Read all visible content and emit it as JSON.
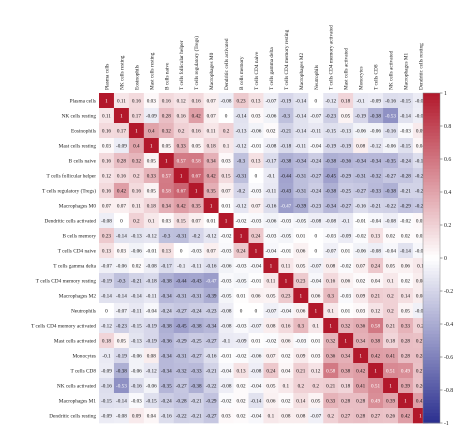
{
  "chart_data": {
    "type": "heatmap",
    "title": "",
    "labels": [
      "Plasma cells",
      "NK cells resting",
      "Eosinophils",
      "Mast cells resting",
      "B cells naive",
      "T cells follicular helper",
      "T cells regulatory (Tregs)",
      "Macrophages M0",
      "Dendritic cells activated",
      "B cells memory",
      "T cells CD4 naive",
      "T cells gamma delta",
      "T cells CD4 memory resting",
      "Macrophages M2",
      "Neutrophils",
      "T cells CD4 memory activated",
      "Mast cells activated",
      "Monocytes",
      "T cells CD8",
      "NK cells activated",
      "Macrophages M1",
      "Dendritic cells resting"
    ],
    "matrix": [
      [
        "1",
        "0.11",
        "0.16",
        "0.03",
        "0.16",
        "0.12",
        "0.16",
        "0.07",
        "-0.08",
        "0.23",
        "0.13",
        "-0.07",
        "-0.19",
        "-0.14",
        "0",
        "-0.12",
        "0.18",
        "-0.1",
        "-0.09",
        "-0.16",
        "-0.15",
        "-0.09"
      ],
      [
        "0.11",
        "1",
        "0.17",
        "-0.09",
        "0.28",
        "0.16",
        "0.42",
        "0.07",
        "0",
        "-0.14",
        "0.03",
        "-0.06",
        "-0.3",
        "-0.14",
        "-0.07",
        "-0.23",
        "0.05",
        "-0.19",
        "-0.38",
        "-0.53",
        "-0.14",
        "-0.08"
      ],
      [
        "0.16",
        "0.17",
        "1",
        "0.4",
        "0.32",
        "0.2",
        "0.16",
        "0.11",
        "0.2",
        "-0.13",
        "-0.06",
        "0.02",
        "-0.21",
        "-0.14",
        "-0.11",
        "-0.15",
        "-0.13",
        "-0.06",
        "-0.06",
        "-0.16",
        "-0.03",
        "0.09"
      ],
      [
        "0.03",
        "-0.09",
        "0.4",
        "1",
        "0.05",
        "0.33",
        "0.05",
        "0.18",
        "0.1",
        "-0.12",
        "-0.01",
        "-0.08",
        "-0.18",
        "-0.11",
        "-0.04",
        "-0.19",
        "-0.19",
        "0.08",
        "-0.12",
        "-0.06",
        "-0.15",
        "0.04"
      ],
      [
        "0.16",
        "0.28",
        "0.32",
        "0.05",
        "1",
        "0.57",
        "0.58",
        "0.34",
        "0.03",
        "-0.3",
        "0.13",
        "-0.17",
        "-0.38",
        "-0.34",
        "-0.24",
        "-0.38",
        "-0.36",
        "-0.34",
        "-0.34",
        "-0.35",
        "-0.24",
        "-0.16"
      ],
      [
        "0.12",
        "0.16",
        "0.2",
        "0.33",
        "0.57",
        "1",
        "0.67",
        "0.42",
        "0.15",
        "-0.31",
        "0",
        "-0.1",
        "-0.44",
        "-0.31",
        "-0.27",
        "-0.45",
        "-0.29",
        "-0.31",
        "-0.32",
        "-0.27",
        "-0.28",
        "-0.22"
      ],
      [
        "0.16",
        "0.42",
        "0.16",
        "0.05",
        "0.58",
        "0.67",
        "1",
        "0.35",
        "0.07",
        "-0.2",
        "-0.03",
        "-0.11",
        "-0.43",
        "-0.31",
        "-0.24",
        "-0.38",
        "-0.25",
        "-0.27",
        "-0.33",
        "-0.38",
        "-0.21",
        "-0.21"
      ],
      [
        "0.07",
        "0.07",
        "0.11",
        "0.18",
        "0.34",
        "0.42",
        "0.35",
        "1",
        "0.01",
        "-0.12",
        "0.07",
        "-0.16",
        "-0.47",
        "-0.39",
        "-0.23",
        "-0.34",
        "-0.27",
        "-0.16",
        "-0.21",
        "-0.22",
        "-0.29",
        "-0.27"
      ],
      [
        "-0.08",
        "0",
        "0.2",
        "0.1",
        "0.03",
        "0.15",
        "0.07",
        "0.01",
        "1",
        "-0.02",
        "-0.03",
        "-0.06",
        "-0.03",
        "-0.05",
        "-0.08",
        "-0.08",
        "-0.1",
        "-0.01",
        "-0.04",
        "-0.08",
        "-0.02",
        "0.03"
      ],
      [
        "0.23",
        "-0.14",
        "-0.13",
        "-0.12",
        "-0.3",
        "-0.31",
        "-0.2",
        "-0.12",
        "-0.02",
        "1",
        "0.24",
        "-0.03",
        "-0.05",
        "0.01",
        "0",
        "-0.03",
        "-0.09",
        "-0.02",
        "0.13",
        "0.02",
        "0.02",
        "0.02"
      ],
      [
        "0.13",
        "0.03",
        "-0.06",
        "-0.01",
        "0.13",
        "0",
        "-0.03",
        "0.07",
        "-0.03",
        "0.24",
        "1",
        "-0.04",
        "-0.01",
        "0.06",
        "0",
        "-0.07",
        "0.01",
        "-0.06",
        "-0.08",
        "-0.04",
        "-0.14",
        "-0.04"
      ],
      [
        "-0.07",
        "-0.06",
        "0.02",
        "-0.08",
        "-0.17",
        "-0.1",
        "-0.11",
        "-0.16",
        "-0.06",
        "-0.03",
        "-0.04",
        "1",
        "0.11",
        "0.05",
        "-0.07",
        "0.08",
        "-0.02",
        "0.07",
        "0.24",
        "0.05",
        "0.06",
        "0.1"
      ],
      [
        "-0.19",
        "-0.3",
        "-0.21",
        "-0.18",
        "-0.38",
        "-0.44",
        "-0.43",
        "-0.47",
        "-0.03",
        "-0.05",
        "-0.01",
        "0.11",
        "1",
        "0.23",
        "-0.04",
        "0.16",
        "0.06",
        "0.02",
        "0.04",
        "0.1",
        "0.02",
        "0.08"
      ],
      [
        "-0.14",
        "-0.14",
        "-0.14",
        "-0.11",
        "-0.34",
        "-0.31",
        "-0.31",
        "-0.39",
        "-0.05",
        "0.01",
        "0.06",
        "0.05",
        "0.23",
        "1",
        "0.06",
        "0.3",
        "-0.03",
        "0.09",
        "0.21",
        "0.2",
        "0.14",
        "0.08"
      ],
      [
        "0",
        "-0.07",
        "-0.11",
        "-0.04",
        "-0.24",
        "-0.27",
        "-0.24",
        "-0.23",
        "-0.08",
        "0",
        "0",
        "-0.07",
        "-0.04",
        "0.06",
        "1",
        "0.1",
        "0.01",
        "0.03",
        "0.12",
        "0.2",
        "0.05",
        "-0.07"
      ],
      [
        "-0.12",
        "-0.23",
        "-0.15",
        "-0.19",
        "-0.38",
        "-0.45",
        "-0.38",
        "-0.34",
        "-0.08",
        "-0.03",
        "-0.07",
        "0.08",
        "0.16",
        "0.3",
        "0.1",
        "1",
        "0.32",
        "0.36",
        "0.58",
        "0.21",
        "0.33",
        "0.2"
      ],
      [
        "0.18",
        "0.05",
        "-0.13",
        "-0.19",
        "-0.36",
        "-0.29",
        "-0.25",
        "-0.27",
        "-0.1",
        "-0.09",
        "0.01",
        "-0.02",
        "0.06",
        "-0.03",
        "0.01",
        "0.32",
        "1",
        "0.34",
        "0.38",
        "0.18",
        "0.28",
        "0.27"
      ],
      [
        "-0.1",
        "-0.19",
        "-0.06",
        "0.08",
        "-0.34",
        "-0.31",
        "-0.27",
        "-0.16",
        "-0.01",
        "-0.02",
        "-0.06",
        "0.07",
        "0.02",
        "0.09",
        "0.03",
        "0.36",
        "0.34",
        "1",
        "0.42",
        "0.41",
        "0.28",
        "0.28"
      ],
      [
        "-0.09",
        "-0.38",
        "-0.06",
        "-0.12",
        "-0.34",
        "-0.32",
        "-0.33",
        "-0.21",
        "-0.04",
        "0.13",
        "-0.08",
        "0.24",
        "0.04",
        "0.21",
        "0.12",
        "0.58",
        "0.38",
        "0.42",
        "1",
        "0.51",
        "0.49",
        "0.27"
      ],
      [
        "-0.16",
        "-0.53",
        "-0.16",
        "-0.06",
        "-0.35",
        "-0.27",
        "-0.38",
        "-0.22",
        "-0.08",
        "0.02",
        "-0.04",
        "0.05",
        "0.1",
        "0.2",
        "0.2",
        "0.21",
        "0.18",
        "0.41",
        "0.51",
        "1",
        "0.39",
        "0.26"
      ],
      [
        "-0.15",
        "-0.14",
        "-0.03",
        "-0.15",
        "-0.24",
        "-0.28",
        "-0.21",
        "-0.29",
        "-0.02",
        "0.02",
        "-0.14",
        "0.06",
        "0.02",
        "0.14",
        "0.05",
        "0.33",
        "0.28",
        "0.28",
        "0.49",
        "0.39",
        "1",
        "0.42"
      ],
      [
        "-0.09",
        "-0.08",
        "0.09",
        "0.04",
        "-0.16",
        "-0.22",
        "-0.21",
        "-0.27",
        "0.03",
        "0.02",
        "-0.04",
        "0.1",
        "0.08",
        "0.08",
        "-0.07",
        "0.2",
        "0.27",
        "0.28",
        "0.27",
        "0.26",
        "0.42",
        "1"
      ]
    ],
    "colorbar": {
      "min": -1,
      "max": 1,
      "ticks": [
        "1",
        "0.8",
        "0.6",
        "0.4",
        "0.2",
        "0",
        "-0.2",
        "-0.4",
        "-0.6",
        "-0.8",
        "-1"
      ],
      "colors": {
        "positive": "#b2182b",
        "mid": "#ffffff",
        "negative": "#2b2f8f"
      }
    },
    "grid": false,
    "legend_position": "right"
  }
}
